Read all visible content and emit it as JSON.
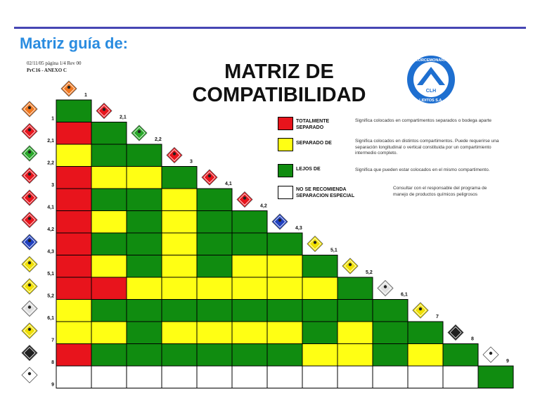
{
  "header": {
    "heading": "Matriz guía de:",
    "meta_line1": "02/11/05   página 1/4   Rev  00",
    "meta_line2": "PrC16 - ANEXO C",
    "title_line1": "MATRIZ DE",
    "title_line2": "COMPATIBILIDAD"
  },
  "logo": {
    "icon": "company-seal-icon",
    "text_top": "CORCEMONARA",
    "text_mid": "CLH",
    "text_bottom": "LIDITOS S.A."
  },
  "colors": {
    "red": "#e8141c",
    "yellow": "#ffff14",
    "green": "#108c10",
    "white": "#ffffff",
    "rule": "#4646b4",
    "heading": "#2a8ce0"
  },
  "legend": [
    {
      "color": "red",
      "label": "TOTALMENTE SEPARADO",
      "desc": "Significa colocados en compartimentos separados o bodega aparte"
    },
    {
      "color": "yellow",
      "label": "SEPARADO DE",
      "desc": "Significa colocados en distintos compartimentos. Puede requerirse una separación longitudinal o vertical constituida por un compartimiento intermedio completo."
    },
    {
      "color": "green",
      "label": "LEJOS DE",
      "desc": "Significa que pueden estar colocados en el mismo compartimento."
    },
    {
      "color": "white",
      "label": "NO SE RECOMIENDA SEPARACION ESPECIAL",
      "desc": "Consultar con el responsable del programa de manejo de productos químicos peligrosos"
    }
  ],
  "matrix": {
    "classes": [
      "1",
      "2,1",
      "2,2",
      "3",
      "4,1",
      "4,2",
      "4,3",
      "5,1",
      "5,2",
      "6,1",
      "7",
      "8",
      "9"
    ],
    "diamond_icons": [
      "explosive-diamond-icon",
      "flammable-gas-diamond-icon",
      "nonflammable-gas-diamond-icon",
      "flammable-liquid-diamond-icon",
      "flammable-solid-diamond-icon",
      "spontaneous-combustion-diamond-icon",
      "dangerous-when-wet-diamond-icon",
      "oxidizer-diamond-icon",
      "organic-peroxide-diamond-icon",
      "toxic-diamond-icon",
      "radioactive-diamond-icon",
      "corrosive-diamond-icon",
      "miscellaneous-diamond-icon"
    ],
    "diamond_colors": [
      "#f07820",
      "#e8141c",
      "#2aa82a",
      "#e8141c",
      "#e8141c",
      "#e8141c",
      "#2040c0",
      "#f0e000",
      "#f0e000",
      "#e0e0e0",
      "#f0e000",
      "#202020",
      "#ffffff"
    ],
    "rows": [
      [
        "G"
      ],
      [
        "R",
        "G"
      ],
      [
        "Y",
        "G",
        "G"
      ],
      [
        "R",
        "Y",
        "Y",
        "G"
      ],
      [
        "R",
        "G",
        "G",
        "Y",
        "G"
      ],
      [
        "R",
        "Y",
        "G",
        "Y",
        "G",
        "G"
      ],
      [
        "R",
        "G",
        "G",
        "Y",
        "G",
        "G",
        "G"
      ],
      [
        "R",
        "Y",
        "G",
        "Y",
        "G",
        "Y",
        "Y",
        "G"
      ],
      [
        "R",
        "R",
        "Y",
        "Y",
        "Y",
        "Y",
        "Y",
        "Y",
        "G"
      ],
      [
        "Y",
        "G",
        "G",
        "G",
        "G",
        "G",
        "G",
        "G",
        "G",
        "G"
      ],
      [
        "Y",
        "Y",
        "G",
        "Y",
        "Y",
        "Y",
        "Y",
        "G",
        "Y",
        "G",
        "G"
      ],
      [
        "R",
        "G",
        "G",
        "G",
        "G",
        "G",
        "G",
        "Y",
        "Y",
        "G",
        "Y",
        "G"
      ],
      [
        "W",
        "W",
        "W",
        "W",
        "W",
        "W",
        "W",
        "W",
        "W",
        "W",
        "W",
        "W",
        "G"
      ]
    ]
  }
}
